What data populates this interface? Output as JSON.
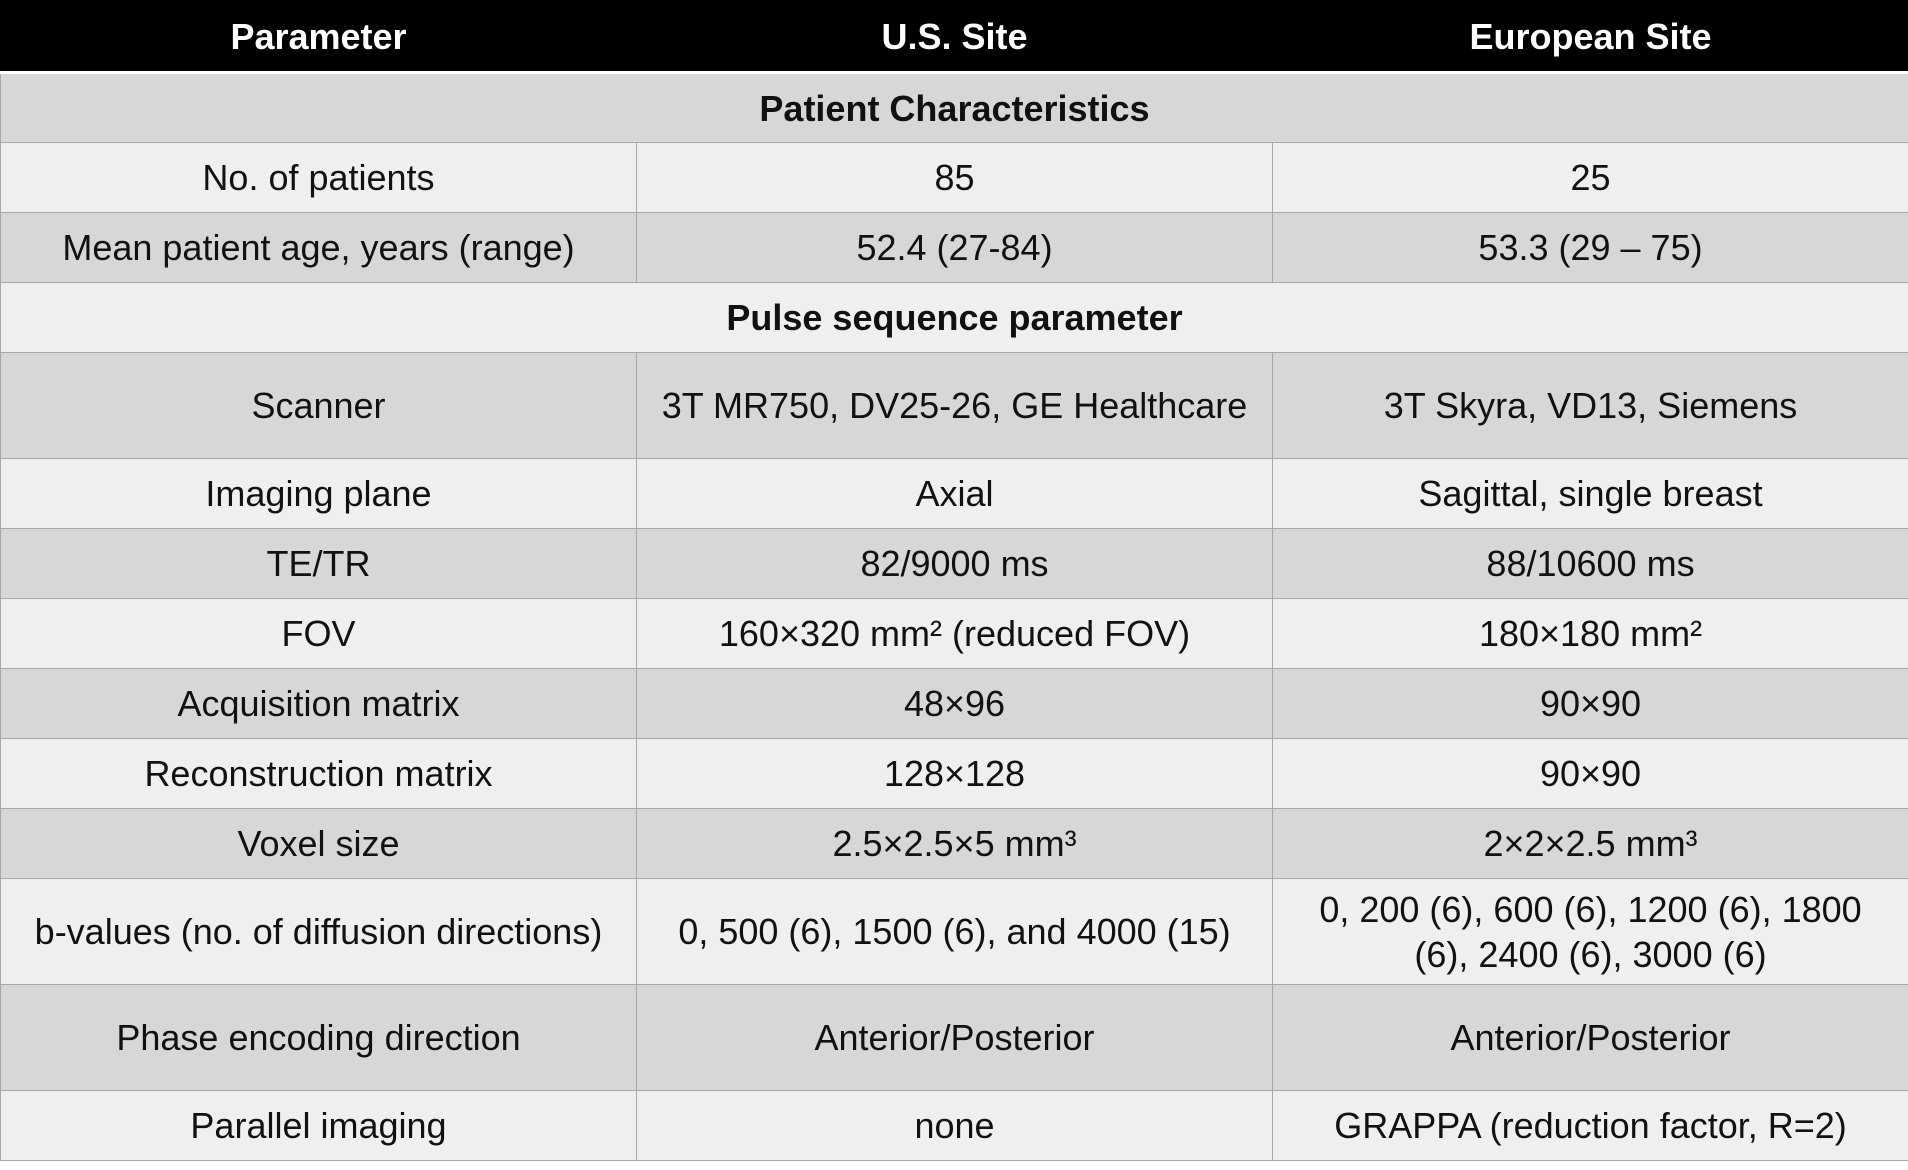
{
  "table": {
    "header": [
      "Parameter",
      "U.S. Site",
      "European Site"
    ],
    "rows": [
      [
        "Patient Characteristics"
      ],
      [
        "No. of patients",
        "85",
        "25"
      ],
      [
        "Mean patient age, years (range)",
        "52.4 (27-84)",
        "53.3 (29 – 75)"
      ],
      [
        "Pulse sequence parameter"
      ],
      [
        "Scanner",
        "3T MR750, DV25-26, GE Healthcare",
        "3T Skyra, VD13, Siemens"
      ],
      [
        "Imaging plane",
        "Axial",
        "Sagittal, single breast"
      ],
      [
        "TE/TR",
        "82/9000 ms",
        "88/10600 ms"
      ],
      [
        "FOV",
        "160×320 mm² (reduced FOV)",
        "180×180 mm²"
      ],
      [
        "Acquisition matrix",
        "48×96",
        "90×90"
      ],
      [
        "Reconstruction matrix",
        "128×128",
        "90×90"
      ],
      [
        "Voxel size",
        "2.5×2.5×5 mm³",
        "2×2×2.5 mm³"
      ],
      [
        "b-values (no. of diffusion directions)",
        "0, 500 (6), 1500 (6), and 4000 (15)",
        "0, 200 (6), 600 (6), 1200 (6), 1800 (6), 2400 (6), 3000 (6)"
      ],
      [
        "Phase encoding direction",
        "Anterior/Posterior",
        "Anterior/Posterior"
      ],
      [
        "Parallel imaging",
        "none",
        "GRAPPA (reduction factor, R=2)"
      ]
    ]
  }
}
